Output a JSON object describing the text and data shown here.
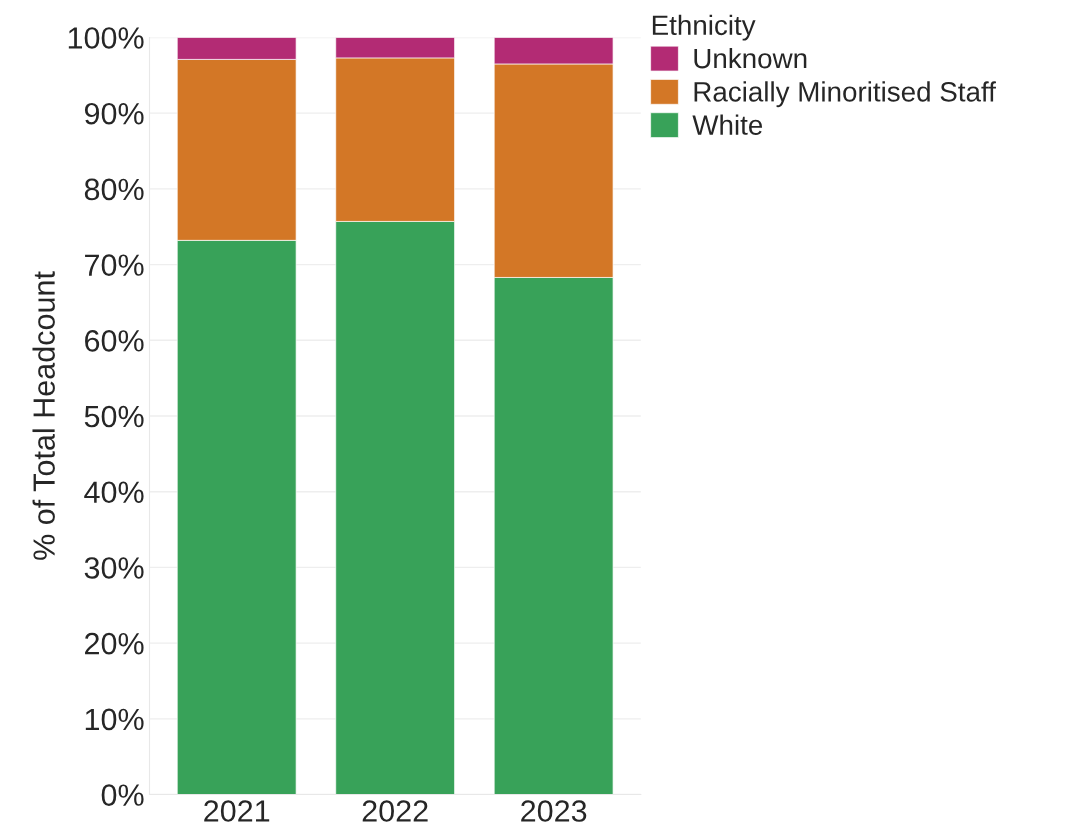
{
  "chart_data": {
    "type": "bar",
    "stacked": true,
    "ylabel": "% of Total Headcount",
    "legend_title": "Ethnicity",
    "categories": [
      "2021",
      "2022",
      "2023"
    ],
    "series": [
      {
        "name": "White",
        "color": "#38a259",
        "values": [
          73.2,
          75.7,
          68.3
        ]
      },
      {
        "name": "Racially Minoritised Staff",
        "color": "#d37726",
        "values": [
          23.9,
          21.6,
          28.2
        ]
      },
      {
        "name": "Unknown",
        "color": "#b32b74",
        "values": [
          2.9,
          2.7,
          3.5
        ]
      }
    ],
    "ylim": [
      0,
      100
    ],
    "yticks": [
      {
        "value": 0,
        "label": "0%"
      },
      {
        "value": 10,
        "label": "10%"
      },
      {
        "value": 20,
        "label": "20%"
      },
      {
        "value": 30,
        "label": "30%"
      },
      {
        "value": 40,
        "label": "40%"
      },
      {
        "value": 50,
        "label": "50%"
      },
      {
        "value": 60,
        "label": "60%"
      },
      {
        "value": 70,
        "label": "70%"
      },
      {
        "value": 80,
        "label": "80%"
      },
      {
        "value": 90,
        "label": "90%"
      },
      {
        "value": 100,
        "label": "100%"
      }
    ],
    "grid": "y",
    "legend": "top right"
  }
}
